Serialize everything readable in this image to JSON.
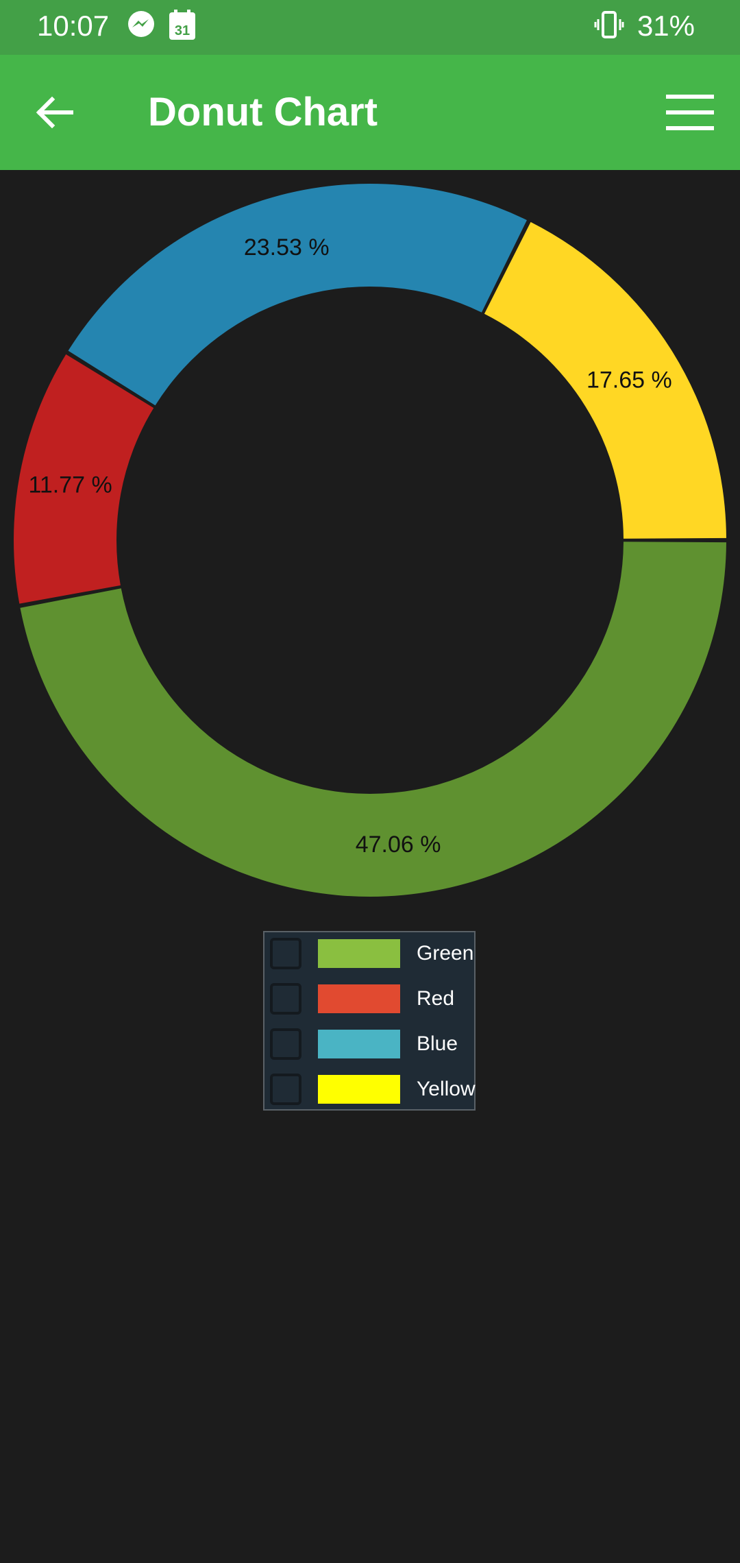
{
  "status_bar": {
    "time": "10:07",
    "calendar_day": "31",
    "battery": "31%",
    "icons": [
      "messenger-icon",
      "calendar-icon",
      "vibrate-icon"
    ]
  },
  "app_bar": {
    "title": "Donut Chart",
    "back_icon": "arrow-left-icon",
    "menu_icon": "hamburger-menu-icon",
    "color": "#45b649"
  },
  "chart_data": {
    "type": "pie",
    "variant": "donut",
    "categories": [
      "Green",
      "Red",
      "Blue",
      "Yellow"
    ],
    "values": [
      47.06,
      11.77,
      23.53,
      17.65
    ],
    "labels": [
      "47.06 %",
      "11.77 %",
      "23.53 %",
      "17.65 %"
    ],
    "slice_colors": [
      "#5f9130",
      "#c02020",
      "#2585b0",
      "#ffd724"
    ],
    "legend_colors": [
      "#8abf40",
      "#e14a30",
      "#4ab4c4",
      "#ffff00"
    ],
    "legend_position": "bottom-center"
  },
  "legend": {
    "items": [
      {
        "label": "Green",
        "color": "#8abf40"
      },
      {
        "label": "Red",
        "color": "#e14a30"
      },
      {
        "label": "Blue",
        "color": "#4ab4c4"
      },
      {
        "label": "Yellow",
        "color": "#ffff00"
      }
    ]
  }
}
